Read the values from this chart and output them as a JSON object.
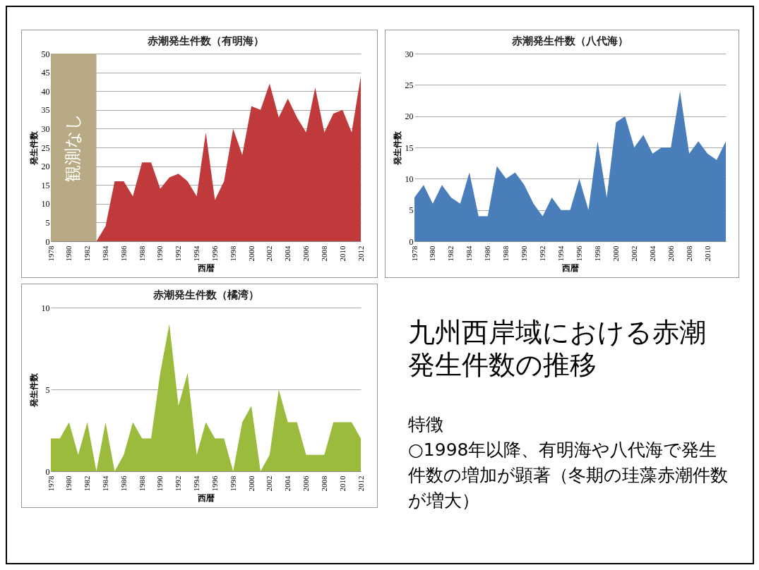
{
  "chart_data": [
    {
      "type": "area",
      "title": "赤潮発生件数（有明海）",
      "xlabel": "西暦",
      "ylabel": "発生件数",
      "x": [
        1983,
        1984,
        1985,
        1986,
        1987,
        1988,
        1989,
        1990,
        1991,
        1992,
        1993,
        1994,
        1995,
        1996,
        1997,
        1998,
        1999,
        2000,
        2001,
        2002,
        2003,
        2004,
        2005,
        2006,
        2007,
        2008,
        2009,
        2010,
        2011,
        2012
      ],
      "values": [
        0,
        4,
        16,
        16,
        12,
        21,
        21,
        14,
        17,
        18,
        16,
        12,
        29,
        11,
        16,
        30,
        23,
        36,
        35,
        42,
        33,
        38,
        33,
        29,
        41,
        29,
        34,
        35,
        29,
        44
      ],
      "color": "#c0393b",
      "xlim": [
        1978,
        2012
      ],
      "xticks": [
        1978,
        1980,
        1982,
        1984,
        1986,
        1988,
        1990,
        1992,
        1994,
        1996,
        1998,
        2000,
        2002,
        2004,
        2006,
        2008,
        2010,
        2012
      ],
      "ylim": [
        0,
        50
      ],
      "yticks": [
        0,
        5,
        10,
        15,
        20,
        25,
        30,
        35,
        40,
        45,
        50
      ],
      "grid": "y",
      "bands": [
        {
          "axis": "x",
          "from": 1978,
          "to": 1983,
          "label": "観測なし",
          "color": "#b8aa84"
        }
      ]
    },
    {
      "type": "area",
      "title": "赤潮発生件数（八代海）",
      "xlabel": "西暦",
      "ylabel": "発生件数",
      "x": [
        1978,
        1979,
        1980,
        1981,
        1982,
        1983,
        1984,
        1985,
        1986,
        1987,
        1988,
        1989,
        1990,
        1991,
        1992,
        1993,
        1994,
        1995,
        1996,
        1997,
        1998,
        1999,
        2000,
        2001,
        2002,
        2003,
        2004,
        2005,
        2006,
        2007,
        2008,
        2009,
        2010,
        2011,
        2012
      ],
      "values": [
        7,
        9,
        6,
        9,
        7,
        6,
        11,
        4,
        4,
        12,
        10,
        11,
        9,
        6,
        4,
        7,
        5,
        5,
        10,
        5,
        16,
        7,
        19,
        20,
        15,
        17,
        14,
        15,
        15,
        24,
        14,
        16,
        14,
        13,
        16
      ],
      "color": "#4a7ebb",
      "xlim": [
        1978,
        2012
      ],
      "xticks": [
        1978,
        1980,
        1982,
        1984,
        1986,
        1988,
        1990,
        1992,
        1994,
        1996,
        1998,
        2000,
        2002,
        2004,
        2006,
        2008,
        2010
      ],
      "ylim": [
        0,
        30
      ],
      "yticks": [
        0,
        5,
        10,
        15,
        20,
        25,
        30
      ],
      "grid": "y"
    },
    {
      "type": "area",
      "title": "赤潮発生件数（橘湾）",
      "xlabel": "西暦",
      "ylabel": "発生件数",
      "x": [
        1978,
        1979,
        1980,
        1981,
        1982,
        1983,
        1984,
        1985,
        1986,
        1987,
        1988,
        1989,
        1990,
        1991,
        1992,
        1993,
        1994,
        1995,
        1996,
        1997,
        1998,
        1999,
        2000,
        2001,
        2002,
        2003,
        2004,
        2005,
        2006,
        2007,
        2008,
        2009,
        2010,
        2011,
        2012
      ],
      "values": [
        2,
        2,
        3,
        1,
        3,
        0,
        3,
        0,
        1,
        3,
        2,
        2,
        6,
        9,
        4,
        6,
        1,
        3,
        2,
        2,
        0,
        3,
        4,
        0,
        1,
        5,
        3,
        3,
        1,
        1,
        1,
        3,
        3,
        3,
        2
      ],
      "color": "#9bbb3c",
      "xlim": [
        1978,
        2012
      ],
      "xticks": [
        1978,
        1980,
        1982,
        1984,
        1986,
        1988,
        1990,
        1992,
        1994,
        1996,
        1998,
        2000,
        2002,
        2004,
        2006,
        2008,
        2010,
        2012
      ],
      "ylim": [
        0,
        10
      ],
      "yticks": [
        0,
        5,
        10
      ],
      "grid": "y"
    },
    {
      "type": "other",
      "title": "九州西岸域における赤潮発生件数の推移",
      "annotations": [
        "特徴",
        "○1998年以降、有明海や八代海で発生件数の増加が顕著（冬期の珪藻赤潮件数が増大）"
      ]
    }
  ]
}
